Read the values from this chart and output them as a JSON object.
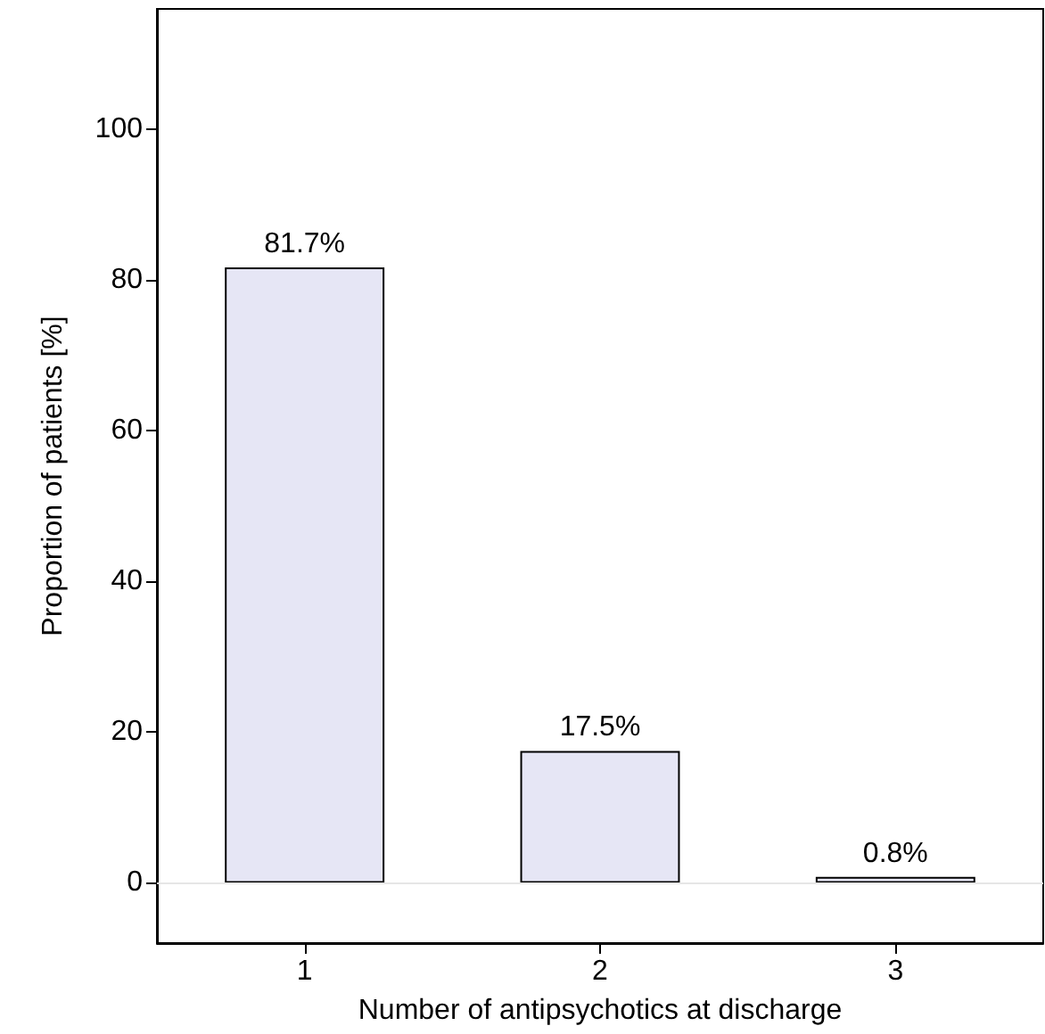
{
  "chart_data": {
    "type": "bar",
    "xlabel": "Number of antipsychotics at discharge",
    "ylabel": "Proportion of patients [%]",
    "categories": [
      "1",
      "2",
      "3"
    ],
    "values": [
      81.7,
      17.5,
      0.8
    ],
    "value_labels": [
      "81.7%",
      "17.5%",
      "0.8%"
    ],
    "color": "#e6e6f5",
    "ylim": [
      -8,
      116
    ],
    "yticks": [
      0,
      20,
      40,
      60,
      80,
      100
    ],
    "ref_lines": [
      {
        "axis": "y",
        "value": 0,
        "color": "#e6e6e6"
      }
    ],
    "grid": false
  }
}
